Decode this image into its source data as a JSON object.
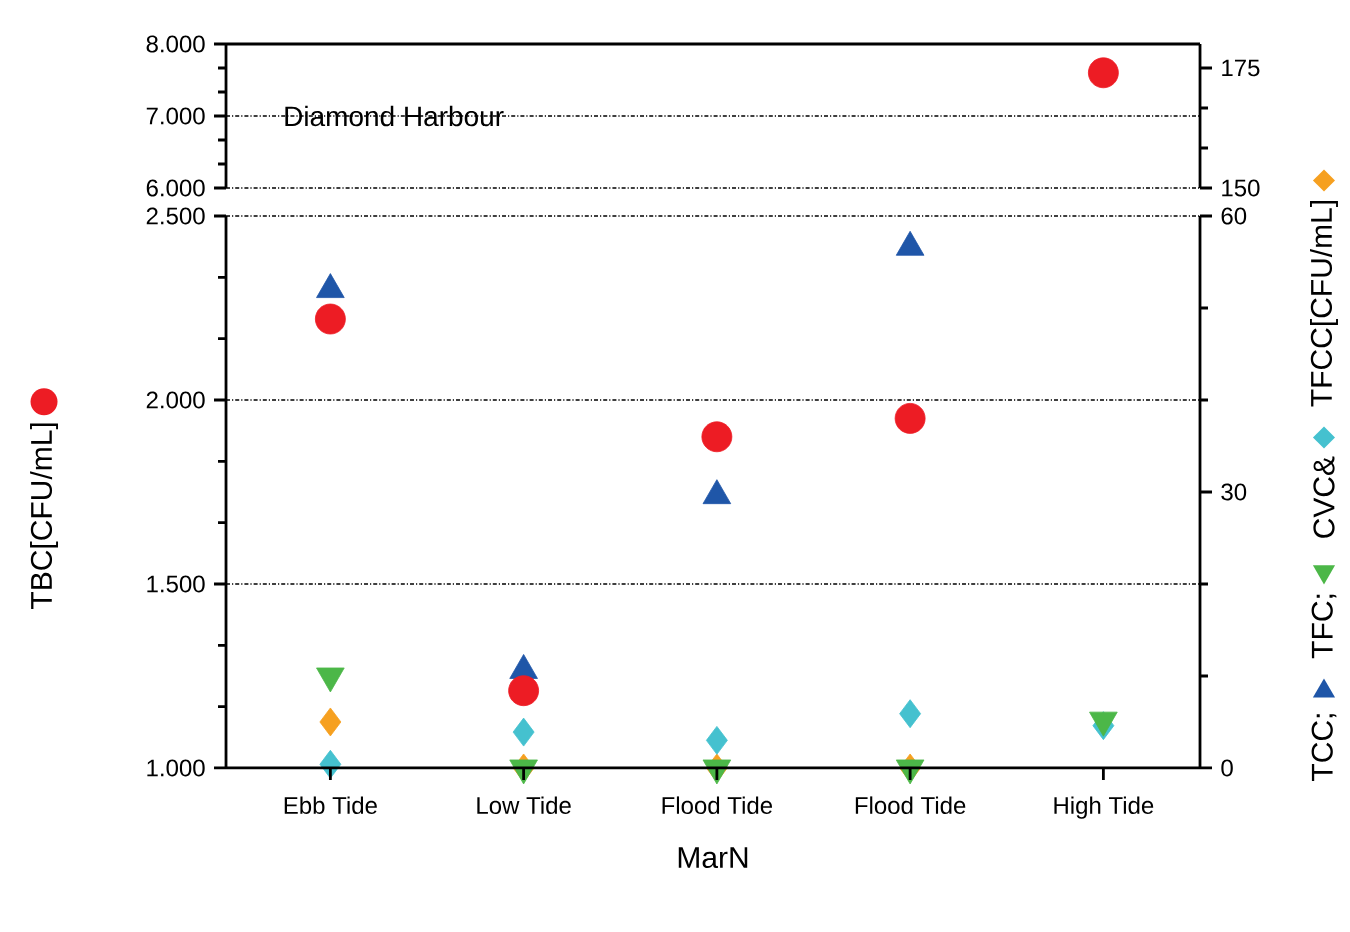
{
  "chart_data": [
    {
      "type": "scatter",
      "categories": [
        null,
        null,
        null,
        null,
        null
      ],
      "tick_labels": "y",
      "ylim": [
        6000,
        8000
      ],
      "yticks": [
        {
          "value": 6000,
          "label": "6.000"
        },
        {
          "value": 7000,
          "label": "7.000"
        },
        {
          "value": 8000,
          "label": "8.000"
        }
      ],
      "y2lim": [
        150,
        180
      ],
      "y2ticks": [
        150,
        175
      ],
      "grid": "y",
      "annotations": [
        "Diamond Harbour"
      ],
      "series": [
        {
          "color": "#ed1c24",
          "marker": "circle",
          "values": [
            null,
            null,
            null,
            null,
            7600
          ]
        }
      ]
    },
    {
      "type": "scatter",
      "categories": [
        "Ebb Tide",
        "Low Tide",
        "Flood Tide",
        "Flood Tide",
        "High Tide"
      ],
      "xlabel": "MarN",
      "ylim": [
        1000,
        2500
      ],
      "yticks": [
        {
          "value": 1000,
          "label": "1.000"
        },
        {
          "value": 1500,
          "label": "1.500"
        },
        {
          "value": 2000,
          "label": "2.000"
        },
        {
          "value": 2500,
          "label": "2.500"
        }
      ],
      "y2lim": [
        0,
        60
      ],
      "y2ticks": [
        0,
        30,
        60
      ],
      "grid": "y",
      "legend": "right",
      "series": [
        {
          "name": "TBC[CFU/mL]",
          "color": "#ed1c24",
          "marker": "circle",
          "values": [
            2220,
            1210,
            1900,
            1950,
            null
          ]
        },
        {
          "name": "TCC;",
          "color": "#1f56a8",
          "marker": "triangle",
          "axis": "y2",
          "values": [
            52,
            10.6,
            29.6,
            56.6,
            null
          ]
        },
        {
          "name": "TFC;",
          "color": "#4cb748",
          "marker": "triangle-down",
          "axis": "y2",
          "values": [
            10,
            0,
            0,
            0,
            5.2
          ]
        },
        {
          "name": "CVC&",
          "color": "#45c1cf",
          "marker": "diamond",
          "axis": "y2",
          "values": [
            0.4,
            3.9,
            3.0,
            5.9,
            4.6
          ]
        },
        {
          "name": "TFCC[CFU/mL]",
          "color": "#f6a020",
          "marker": "diamond",
          "axis": "y2",
          "values": [
            5,
            0,
            0,
            0,
            null
          ]
        }
      ]
    }
  ]
}
